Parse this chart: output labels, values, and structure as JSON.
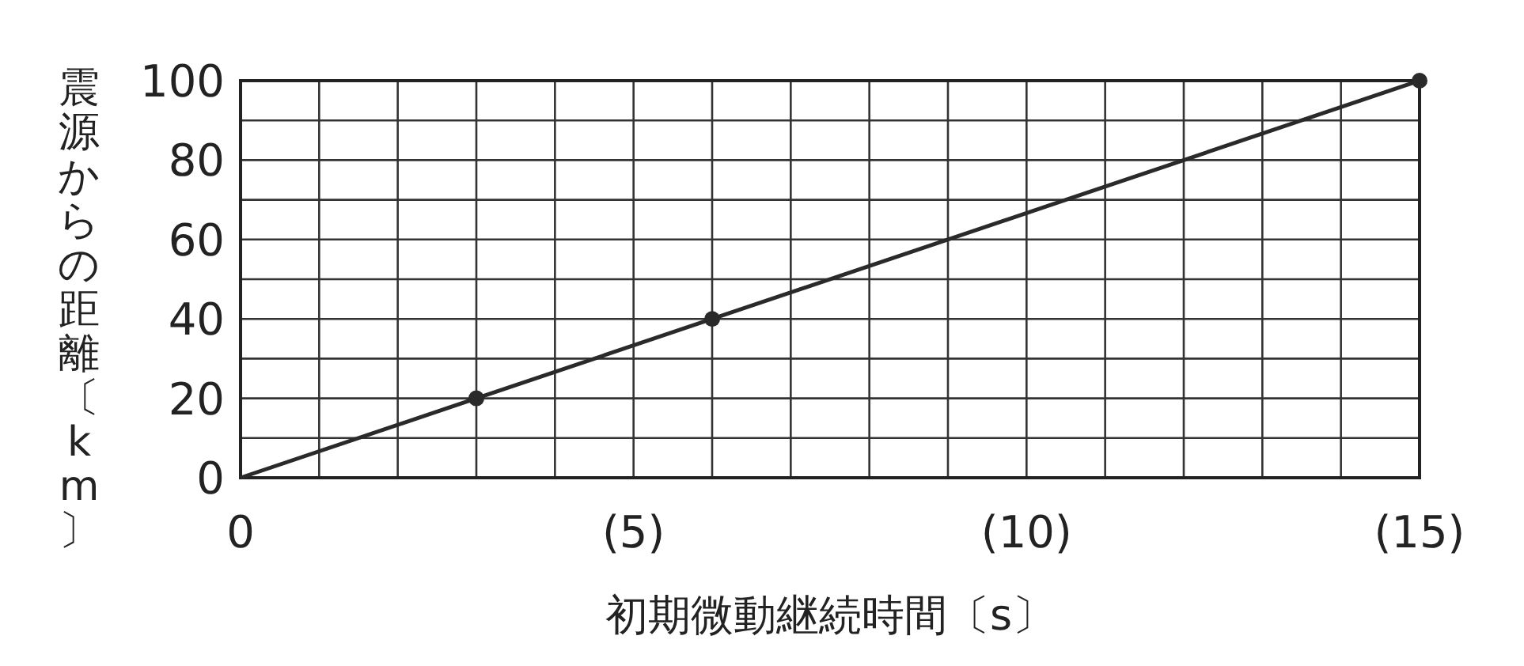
{
  "chart_data": {
    "type": "line",
    "xlabel": "初期微動継続時間〔s〕",
    "ylabel": "震源からの距離〔km〕",
    "xlim": [
      0,
      15
    ],
    "ylim": [
      0,
      100
    ],
    "xticks": [
      {
        "value": 0,
        "label": "0"
      },
      {
        "value": 1,
        "label": null
      },
      {
        "value": 2,
        "label": null
      },
      {
        "value": 3,
        "label": null
      },
      {
        "value": 4,
        "label": null
      },
      {
        "value": 5,
        "label": "(5)"
      },
      {
        "value": 6,
        "label": null
      },
      {
        "value": 7,
        "label": null
      },
      {
        "value": 8,
        "label": null
      },
      {
        "value": 9,
        "label": null
      },
      {
        "value": 10,
        "label": "(10)"
      },
      {
        "value": 11,
        "label": null
      },
      {
        "value": 12,
        "label": null
      },
      {
        "value": 13,
        "label": null
      },
      {
        "value": 14,
        "label": null
      },
      {
        "value": 15,
        "label": "(15)"
      }
    ],
    "yticks": [
      0,
      {
        "value": 10,
        "label": null
      },
      20,
      {
        "value": 30,
        "label": null
      },
      40,
      {
        "value": 50,
        "label": null
      },
      60,
      {
        "value": 70,
        "label": null
      },
      80,
      {
        "value": 90,
        "label": null
      },
      100
    ],
    "grid": true,
    "series": [
      {
        "color": "#2a2a2a",
        "marker": "none",
        "x": [
          0,
          15
        ],
        "values": [
          0,
          100
        ]
      },
      {
        "type": "scatter",
        "color": "#2a2a2a",
        "marker": "circle",
        "x": [
          3,
          6,
          15
        ],
        "values": [
          20,
          40,
          100
        ]
      }
    ]
  }
}
